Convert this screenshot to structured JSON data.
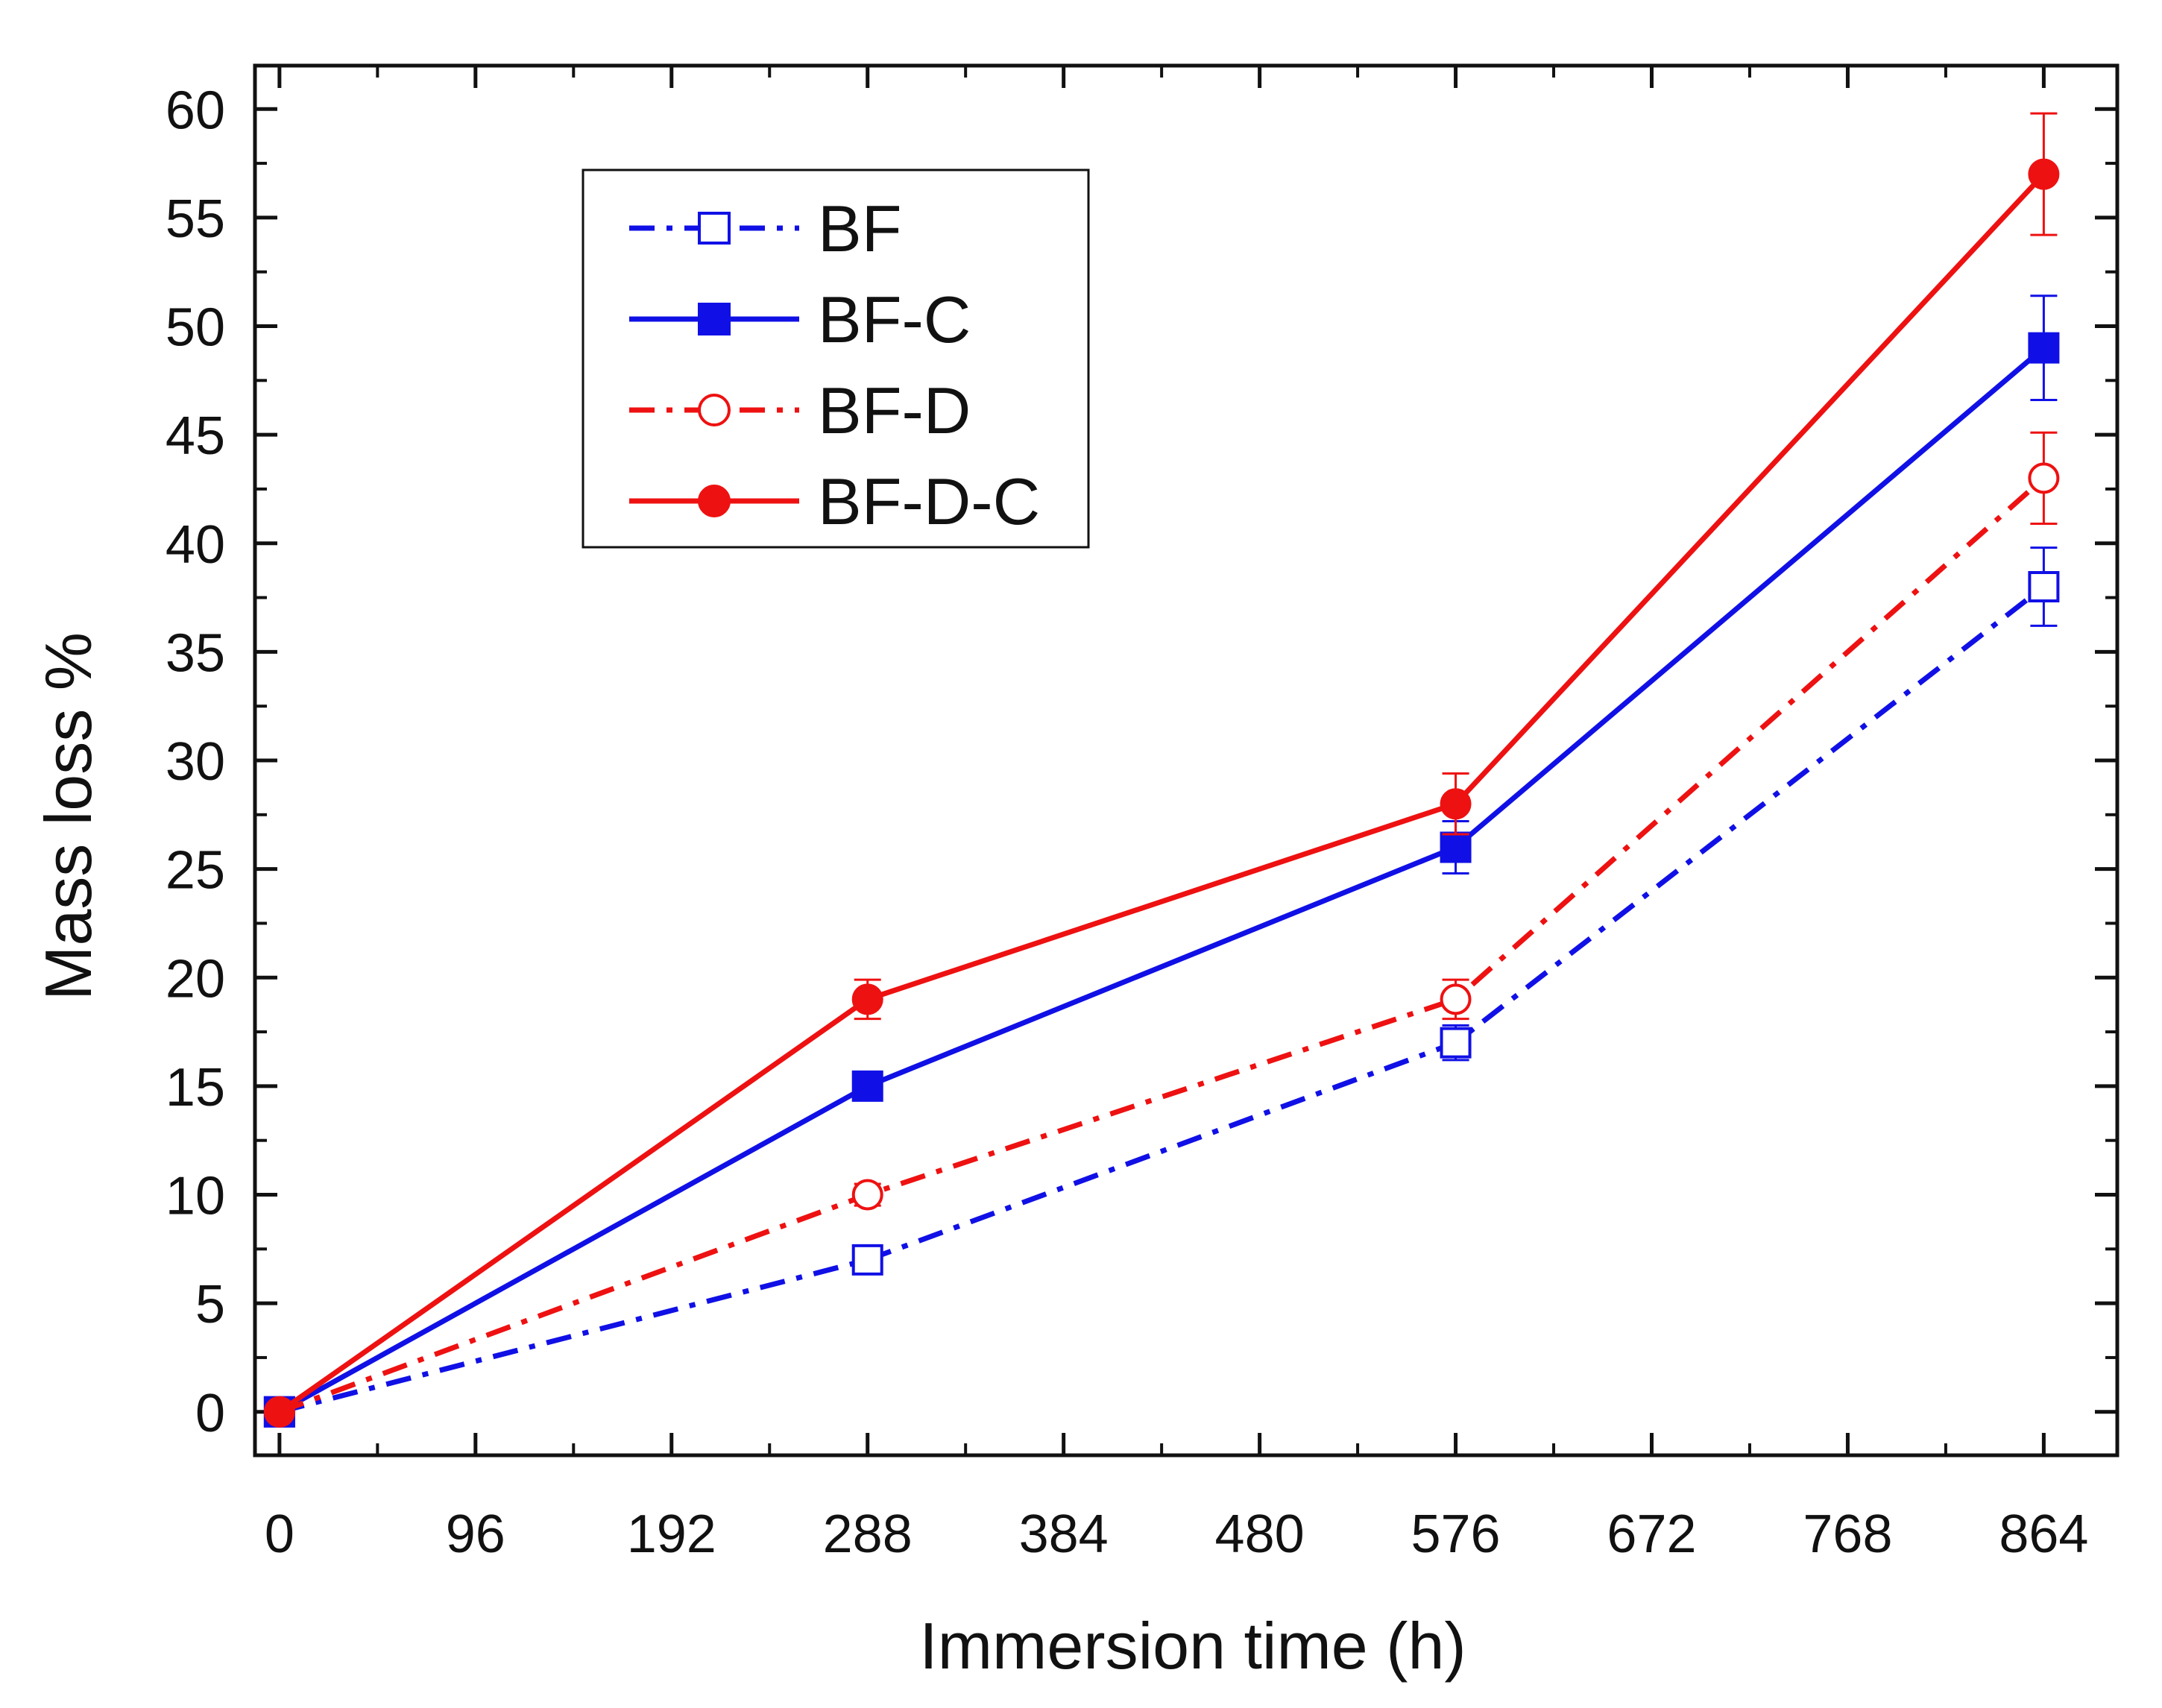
{
  "chart_data": {
    "type": "line",
    "title": "",
    "xlabel": "Immersion time (h)",
    "ylabel": "Mass loss %",
    "xlim": [
      -12,
      900
    ],
    "ylim": [
      -2,
      62
    ],
    "xticks": [
      0,
      96,
      192,
      288,
      384,
      480,
      576,
      672,
      768,
      864
    ],
    "xtick_labels": [
      "0",
      "96",
      "192",
      "288",
      "384",
      "480",
      "576",
      "672",
      "768",
      "864"
    ],
    "yticks": [
      0,
      5,
      10,
      15,
      20,
      25,
      30,
      35,
      40,
      45,
      50,
      55,
      60
    ],
    "ytick_labels": [
      "0",
      "5",
      "10",
      "15",
      "20",
      "25",
      "30",
      "35",
      "40",
      "45",
      "50",
      "55",
      "60"
    ],
    "x": [
      0,
      288,
      576,
      864
    ],
    "grid": false,
    "legend_position": "top-left",
    "series": [
      {
        "name": "BF",
        "values": [
          0,
          7,
          17,
          38
        ],
        "errors": [
          0,
          0.4,
          0.8,
          1.8
        ],
        "color": "#1010e6",
        "line": "dashdot",
        "marker": "square",
        "filled": false
      },
      {
        "name": "BF-C",
        "values": [
          0,
          15,
          26,
          49
        ],
        "errors": [
          0,
          0.5,
          1.2,
          2.4
        ],
        "color": "#1010e6",
        "line": "solid",
        "marker": "square",
        "filled": true
      },
      {
        "name": "BF-D",
        "values": [
          0,
          10,
          19,
          43
        ],
        "errors": [
          0,
          0.5,
          0.9,
          2.1
        ],
        "color": "#ee1111",
        "line": "dashdot",
        "marker": "circle",
        "filled": false
      },
      {
        "name": "BF-D-C",
        "values": [
          0,
          19,
          28,
          57
        ],
        "errors": [
          0,
          0.9,
          1.4,
          2.8
        ],
        "color": "#ee1111",
        "line": "solid",
        "marker": "circle",
        "filled": true
      }
    ]
  }
}
